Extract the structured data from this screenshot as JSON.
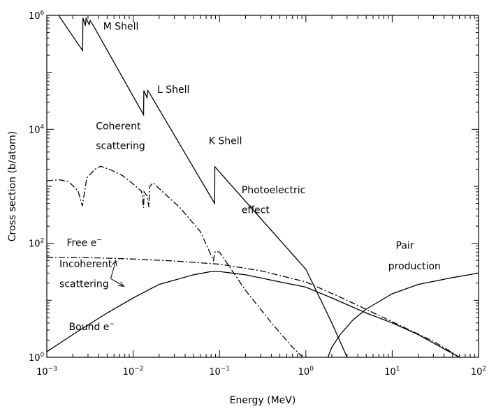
{
  "chart_data": {
    "type": "line",
    "title": "",
    "xlabel": "Energy (MeV)",
    "ylabel": "Cross section (b/atom)",
    "xscale": "log",
    "yscale": "log",
    "xlim": [
      0.001,
      100
    ],
    "ylim": [
      1,
      1000000
    ],
    "grid": false,
    "legend": "none",
    "x_ticks": [
      {
        "base": "10",
        "exp": "-3",
        "value": 0.001
      },
      {
        "base": "10",
        "exp": "-2",
        "value": 0.01
      },
      {
        "base": "10",
        "exp": "-1",
        "value": 0.1
      },
      {
        "base": "10",
        "exp": "0",
        "value": 1
      },
      {
        "base": "10",
        "exp": "1",
        "value": 10
      },
      {
        "base": "10",
        "exp": "2",
        "value": 100
      }
    ],
    "y_ticks": [
      {
        "base": "10",
        "exp": "0",
        "value": 1
      },
      {
        "base": "10",
        "exp": "2",
        "value": 100
      },
      {
        "base": "10",
        "exp": "4",
        "value": 10000
      },
      {
        "base": "10",
        "exp": "6",
        "value": 1000000
      }
    ],
    "series": [
      {
        "key": "photoelectric",
        "dash": "solid",
        "points": [
          [
            0.00137,
            1000000
          ],
          [
            0.0026,
            240000
          ],
          [
            0.00262,
            900000
          ],
          [
            0.0028,
            660000
          ],
          [
            0.00285,
            880000
          ],
          [
            0.0031,
            690000
          ],
          [
            0.00318,
            810000
          ],
          [
            0.0035,
            640000
          ],
          [
            0.0132,
            18000
          ],
          [
            0.0133,
            48000
          ],
          [
            0.0145,
            36000
          ],
          [
            0.0148,
            48000
          ],
          [
            0.0155,
            43000
          ],
          [
            0.088,
            500
          ],
          [
            0.0882,
            2200
          ],
          [
            1.0,
            35
          ],
          [
            2.0,
            4
          ],
          [
            3.0,
            1
          ]
        ]
      },
      {
        "key": "coherent",
        "dash": "dashdot",
        "points": [
          [
            0.001,
            1250
          ],
          [
            0.0014,
            1300
          ],
          [
            0.0018,
            1200
          ],
          [
            0.0023,
            830
          ],
          [
            0.00258,
            450
          ],
          [
            0.0029,
            1400
          ],
          [
            0.0036,
            1990
          ],
          [
            0.0042,
            2250
          ],
          [
            0.0055,
            1950
          ],
          [
            0.0075,
            1550
          ],
          [
            0.01,
            1100
          ],
          [
            0.0125,
            820
          ],
          [
            0.0132,
            420
          ],
          [
            0.0134,
            800
          ],
          [
            0.0145,
            680
          ],
          [
            0.0152,
            430
          ],
          [
            0.0155,
            990
          ],
          [
            0.017,
            1150
          ],
          [
            0.022,
            800
          ],
          [
            0.035,
            420
          ],
          [
            0.06,
            160
          ],
          [
            0.085,
            50
          ],
          [
            0.0875,
            65
          ],
          [
            0.09,
            72
          ],
          [
            0.1,
            70
          ],
          [
            0.2,
            15
          ],
          [
            0.4,
            4
          ],
          [
            0.7,
            1.5
          ],
          [
            0.92,
            1
          ]
        ]
      },
      {
        "key": "free_e",
        "dash": "dashdot",
        "points": [
          [
            0.001,
            57
          ],
          [
            0.003,
            56
          ],
          [
            0.01,
            53
          ],
          [
            0.03,
            49
          ],
          [
            0.1,
            43
          ],
          [
            0.3,
            33
          ],
          [
            1,
            21
          ],
          [
            3,
            10
          ],
          [
            10,
            4.2
          ],
          [
            30,
            1.9
          ],
          [
            50,
            1.2
          ],
          [
            60,
            1
          ]
        ]
      },
      {
        "key": "bound_e",
        "dash": "solid",
        "points": [
          [
            0.001,
            1.25
          ],
          [
            0.002,
            2.5
          ],
          [
            0.005,
            6
          ],
          [
            0.01,
            11
          ],
          [
            0.02,
            19
          ],
          [
            0.05,
            28
          ],
          [
            0.08,
            32
          ],
          [
            0.1,
            32
          ],
          [
            0.2,
            28
          ],
          [
            0.5,
            21
          ],
          [
            1,
            17
          ],
          [
            2,
            11
          ],
          [
            5,
            6
          ],
          [
            10,
            4
          ],
          [
            20,
            2.5
          ],
          [
            40,
            1.4
          ],
          [
            60,
            1
          ]
        ]
      },
      {
        "key": "pair",
        "dash": "solid",
        "points": [
          [
            1.8,
            1
          ],
          [
            2.0,
            1.5
          ],
          [
            2.5,
            2.5
          ],
          [
            3.5,
            4.5
          ],
          [
            5,
            7
          ],
          [
            10,
            13
          ],
          [
            20,
            19
          ],
          [
            50,
            25
          ],
          [
            100,
            30
          ]
        ]
      }
    ],
    "annotations": [
      {
        "key": "m_shell",
        "text": "M Shell",
        "x": 0.0045,
        "y": 560000
      },
      {
        "key": "l_shell",
        "text": "L Shell",
        "x": 0.019,
        "y": 44000
      },
      {
        "key": "k_shell",
        "text": "K Shell",
        "x": 0.075,
        "y": 5500
      },
      {
        "key": "coherent_1",
        "text": "Coherent",
        "x": 0.0037,
        "y": 10000
      },
      {
        "key": "coherent_2",
        "text": "scattering",
        "x": 0.0037,
        "y": 4500
      },
      {
        "key": "photo_1",
        "text": "Photoelectric",
        "x": 0.18,
        "y": 750
      },
      {
        "key": "photo_2",
        "text": "effect",
        "x": 0.18,
        "y": 340
      },
      {
        "key": "incoh_1",
        "text": "Incoherent",
        "x": 0.0014,
        "y": 38
      },
      {
        "key": "incoh_2",
        "text": "scattering",
        "x": 0.0014,
        "y": 17
      },
      {
        "key": "pair_1",
        "text": "Pair",
        "x": 11,
        "y": 80
      },
      {
        "key": "pair_2",
        "text": "production",
        "x": 9,
        "y": 35
      }
    ],
    "electron_labels": [
      {
        "key": "free",
        "text": "Free e",
        "sup": "−",
        "x": 0.0017,
        "y": 90
      },
      {
        "key": "bound",
        "text": "Bound e",
        "sup": "−",
        "x": 0.0018,
        "y": 3
      }
    ],
    "arrows": [
      {
        "from": [
          0.0055,
          24
        ],
        "to": [
          0.0063,
          50
        ]
      },
      {
        "from": [
          0.0055,
          24
        ],
        "to": [
          0.0078,
          17.5
        ]
      }
    ]
  }
}
